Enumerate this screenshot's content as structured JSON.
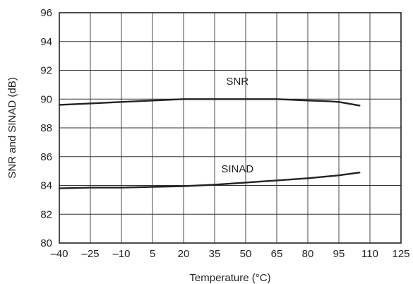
{
  "chart_data": {
    "type": "line",
    "xlabel": "Temperature (°C)",
    "ylabel": "SNR and SINAD (dB)",
    "xlim": [
      -40,
      125
    ],
    "ylim": [
      80,
      96
    ],
    "x_ticks": [
      -40,
      -25,
      -10,
      5,
      20,
      35,
      50,
      65,
      80,
      95,
      110,
      125
    ],
    "x_tick_labels": [
      "–40",
      "–25",
      "–10",
      "5",
      "20",
      "35",
      "50",
      "65",
      "80",
      "95",
      "110",
      "125"
    ],
    "y_ticks": [
      80,
      82,
      84,
      86,
      88,
      90,
      92,
      94,
      96
    ],
    "y_tick_labels": [
      "80",
      "82",
      "84",
      "86",
      "88",
      "90",
      "92",
      "94",
      "96"
    ],
    "grid": true,
    "legend": "none",
    "series": [
      {
        "name": "SNR",
        "color": "#222222",
        "x": [
          -40,
          -25,
          -10,
          5,
          20,
          35,
          50,
          65,
          80,
          90,
          95,
          105
        ],
        "y": [
          89.6,
          89.7,
          89.8,
          89.9,
          90.0,
          90.0,
          90.0,
          90.0,
          89.9,
          89.85,
          89.8,
          89.55
        ]
      },
      {
        "name": "SINAD",
        "color": "#222222",
        "x": [
          -40,
          -25,
          -10,
          5,
          20,
          35,
          50,
          65,
          80,
          95,
          105
        ],
        "y": [
          83.8,
          83.85,
          83.85,
          83.9,
          83.95,
          84.05,
          84.2,
          84.35,
          84.5,
          84.7,
          84.9
        ]
      }
    ],
    "annotations": [
      {
        "text": "SNR",
        "x": 46,
        "y": 91.0
      },
      {
        "text": "SINAD",
        "x": 46,
        "y": 84.9
      }
    ]
  }
}
